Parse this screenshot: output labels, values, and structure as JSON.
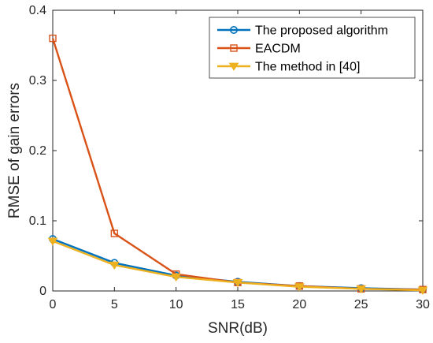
{
  "chart_data": {
    "type": "line",
    "title": "",
    "xlabel": "SNR(dB)",
    "ylabel": "RMSE of gain errors",
    "xlim": [
      0,
      30
    ],
    "ylim": [
      0,
      0.4
    ],
    "xticks": [
      "0",
      "5",
      "10",
      "15",
      "20",
      "25",
      "30"
    ],
    "yticks": [
      "0",
      "0.1",
      "0.2",
      "0.3",
      "0.4"
    ],
    "grid": false,
    "legend_position": "top-right",
    "x": [
      0,
      5,
      10,
      15,
      20,
      25,
      30
    ],
    "series": [
      {
        "name": "The proposed algorithm",
        "color": "#0072BD",
        "marker": "circle",
        "values": [
          0.074,
          0.04,
          0.022,
          0.013,
          0.007,
          0.004,
          0.002
        ]
      },
      {
        "name": "EACDM",
        "color": "#D95319",
        "marker": "square",
        "values": [
          0.36,
          0.082,
          0.024,
          0.012,
          0.007,
          0.003,
          0.002
        ]
      },
      {
        "name": "The method in [40]",
        "color": "#EDB120",
        "marker": "triangle-down",
        "values": [
          0.071,
          0.037,
          0.02,
          0.012,
          0.006,
          0.003,
          0.001
        ]
      }
    ]
  }
}
